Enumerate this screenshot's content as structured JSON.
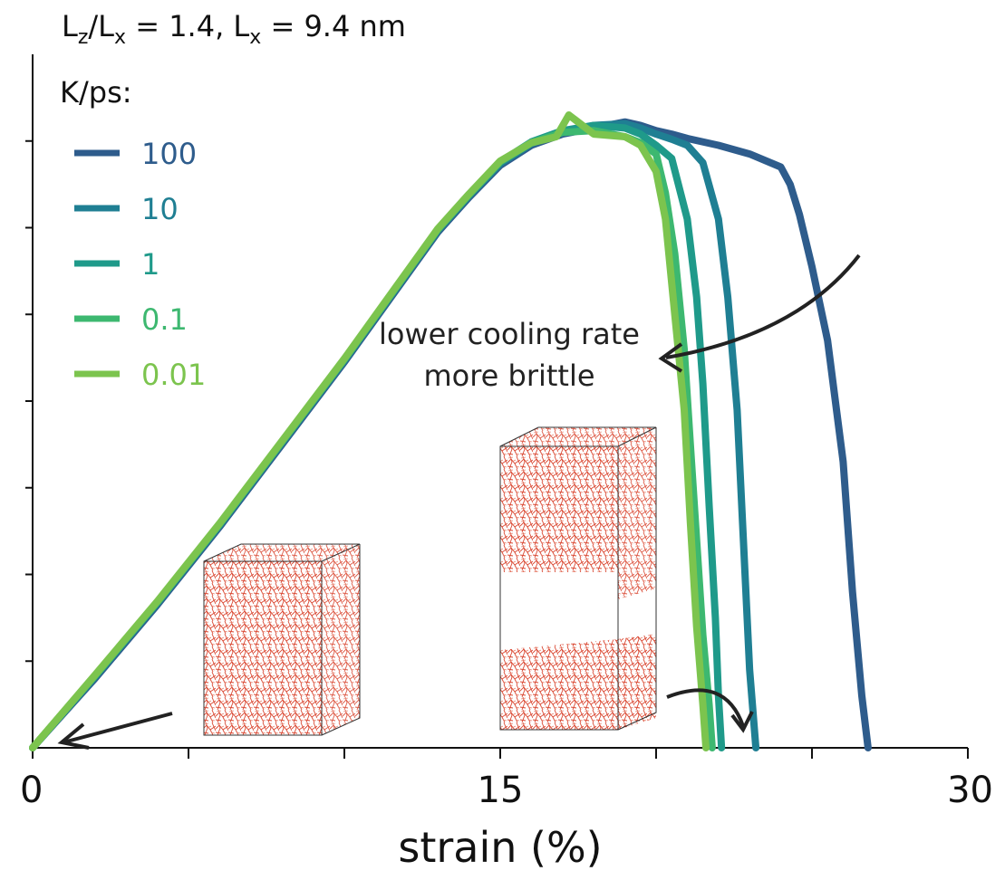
{
  "chart_data": {
    "type": "line",
    "title": "L_z/L_x = 1.4,  L_x = 9.4 nm",
    "title_parts": {
      "a": "L",
      "a_sub": "z",
      "b": "/L",
      "b_sub": "x",
      "c": " = 1.4,  L",
      "c_sub": "x",
      "d": " = 9.4 nm"
    },
    "xlabel": "strain (%)",
    "ylabel": "",
    "xlim": [
      0,
      30
    ],
    "ylim": [
      0,
      8
    ],
    "x_ticks": [
      0,
      15,
      30
    ],
    "x_tick_labels": [
      "0",
      "15",
      "30"
    ],
    "x_minor_ticks": [
      5,
      10,
      20,
      25
    ],
    "y_ticks": [
      1,
      2,
      3,
      4,
      5,
      6,
      7
    ],
    "grid": false,
    "legend_title": "K/ps:",
    "legend_position": "top-left",
    "series": [
      {
        "name": "100",
        "color": "#2e5c8c",
        "x": [
          0,
          2,
          4,
          6,
          8,
          10,
          11,
          12,
          13,
          14,
          15,
          16,
          17,
          18,
          19,
          19.5,
          20,
          20.5,
          21,
          22,
          23,
          24,
          24.3,
          24.6,
          25,
          25.5,
          26,
          26.3,
          26.6,
          26.8
        ],
        "y": [
          0,
          0.8,
          1.65,
          2.55,
          3.5,
          4.45,
          4.95,
          5.45,
          5.95,
          6.35,
          6.72,
          6.95,
          7.08,
          7.15,
          7.22,
          7.18,
          7.12,
          7.08,
          7.03,
          6.95,
          6.85,
          6.7,
          6.5,
          6.15,
          5.55,
          4.7,
          3.3,
          1.8,
          0.6,
          0
        ]
      },
      {
        "name": "10",
        "color": "#1f7f93",
        "x": [
          0,
          2,
          4,
          6,
          8,
          10,
          11,
          12,
          13,
          14,
          15,
          16,
          17,
          18,
          19,
          19.5,
          20,
          20.5,
          21,
          21.5,
          22,
          22.3,
          22.6,
          22.8,
          23,
          23.2
        ],
        "y": [
          0,
          0.82,
          1.67,
          2.57,
          3.52,
          4.47,
          4.97,
          5.47,
          5.97,
          6.37,
          6.74,
          6.97,
          7.1,
          7.18,
          7.2,
          7.15,
          7.08,
          7.02,
          6.95,
          6.75,
          6.1,
          5.2,
          3.9,
          2.4,
          0.9,
          0
        ]
      },
      {
        "name": "1",
        "color": "#1f9a8a",
        "x": [
          0,
          2,
          4,
          6,
          8,
          10,
          11,
          12,
          13,
          14,
          15,
          16,
          17,
          18,
          19,
          19.5,
          20,
          20.5,
          21,
          21.3,
          21.5,
          21.7,
          21.9,
          22,
          22.1
        ],
        "y": [
          0,
          0.83,
          1.68,
          2.58,
          3.53,
          4.48,
          4.98,
          5.48,
          5.98,
          6.38,
          6.76,
          6.99,
          7.12,
          7.18,
          7.15,
          7.08,
          6.95,
          6.8,
          6.1,
          5.2,
          4.2,
          2.8,
          1.5,
          0.6,
          0
        ]
      },
      {
        "name": "0.1",
        "color": "#3db870",
        "x": [
          0,
          2,
          4,
          6,
          8,
          10,
          11,
          12,
          13,
          14,
          15,
          16,
          17,
          18,
          19,
          19.5,
          20,
          20.3,
          20.6,
          20.9,
          21.1,
          21.3,
          21.5,
          21.7,
          21.8
        ],
        "y": [
          0,
          0.83,
          1.68,
          2.58,
          3.53,
          4.48,
          4.98,
          5.48,
          5.98,
          6.38,
          6.76,
          6.98,
          7.1,
          7.12,
          7.05,
          6.98,
          6.85,
          6.4,
          5.7,
          4.6,
          3.5,
          2.4,
          1.3,
          0.5,
          0
        ]
      },
      {
        "name": "0.01",
        "color": "#7cc44e",
        "x": [
          0,
          2,
          4,
          6,
          8,
          10,
          11,
          12,
          13,
          14,
          15,
          16,
          16.8,
          17.2,
          18,
          19,
          19.5,
          20,
          20.3,
          20.6,
          20.9,
          21.1,
          21.3,
          21.5,
          21.6
        ],
        "y": [
          0,
          0.84,
          1.69,
          2.59,
          3.54,
          4.49,
          4.99,
          5.49,
          5.99,
          6.39,
          6.77,
          6.98,
          7.05,
          7.3,
          7.08,
          7.05,
          6.95,
          6.65,
          6.1,
          5.0,
          3.9,
          2.6,
          1.4,
          0.5,
          0
        ]
      }
    ],
    "annotations": {
      "arrow_text_line1": "lower cooling rate",
      "arrow_text_line2": "more brittle"
    }
  }
}
